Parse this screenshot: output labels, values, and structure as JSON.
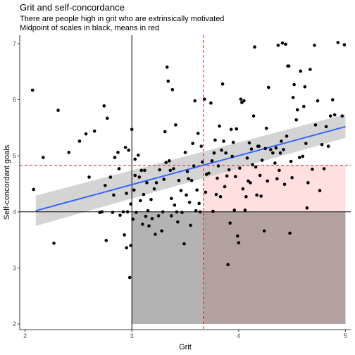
{
  "chart_data": {
    "type": "scatter",
    "title": "Grit and self-concordance",
    "subtitle_lines": [
      "There are people high in grit who are extrinsically motivated",
      "Midpoint of scales in black, means in red"
    ],
    "xlabel": "Grit",
    "ylabel": "Self-concordant goals",
    "xlim": [
      1.95,
      5.05
    ],
    "ylim": [
      1.9,
      7.15
    ],
    "xticks": [
      2,
      3,
      4,
      5
    ],
    "yticks": [
      2,
      3,
      4,
      5,
      6,
      7
    ],
    "grid": false,
    "scale_midpoints": {
      "x": 3,
      "y": 4
    },
    "means": {
      "x": 3.67,
      "y": 4.83
    },
    "regions": [
      {
        "name": "grey",
        "x": [
          3,
          3.67
        ],
        "y": [
          2,
          4
        ],
        "color": "#b3b3b3"
      },
      {
        "name": "brown",
        "x": [
          3.67,
          5
        ],
        "y": [
          2,
          4
        ],
        "color": "#b3a1a1"
      },
      {
        "name": "pink",
        "x": [
          3.67,
          5
        ],
        "y": [
          4,
          4.83
        ],
        "color": "#ffdfe0"
      }
    ],
    "regression": {
      "x": [
        2.1,
        5.0
      ],
      "y": [
        4.02,
        5.52
      ],
      "ci_lower": [
        3.75,
        5.32
      ],
      "ci_upper": [
        4.29,
        5.74
      ],
      "color": "#3366ff",
      "ribbon_color": "#cccccc"
    },
    "midpoint_color": "#000000",
    "mean_color": "#e41a1c",
    "points": [
      [
        2.07,
        6.17
      ],
      [
        2.08,
        4.4
      ],
      [
        2.17,
        4.97
      ],
      [
        2.27,
        3.44
      ],
      [
        2.31,
        5.81
      ],
      [
        2.41,
        5.06
      ],
      [
        2.51,
        5.26
      ],
      [
        2.57,
        5.39
      ],
      [
        2.6,
        4.62
      ],
      [
        2.65,
        5.44
      ],
      [
        2.7,
        3.99
      ],
      [
        2.72,
        4.0
      ],
      [
        2.74,
        5.89
      ],
      [
        2.75,
        4.47
      ],
      [
        2.76,
        3.49
      ],
      [
        2.77,
        5.67
      ],
      [
        2.8,
        4.62
      ],
      [
        2.82,
        3.99
      ],
      [
        2.83,
        4.3
      ],
      [
        2.84,
        4.97
      ],
      [
        2.87,
        5.06
      ],
      [
        2.88,
        4.77
      ],
      [
        2.89,
        3.94
      ],
      [
        2.92,
        4.0
      ],
      [
        2.93,
        3.59
      ],
      [
        2.94,
        5.15
      ],
      [
        2.95,
        4.33
      ],
      [
        2.95,
        3.36
      ],
      [
        2.96,
        4.0
      ],
      [
        2.97,
        5.1
      ],
      [
        2.98,
        2.83
      ],
      [
        2.99,
        3.4
      ],
      [
        2.99,
        4.14
      ],
      [
        3.0,
        5.47
      ],
      [
        3.01,
        3.87
      ],
      [
        3.02,
        4.39
      ],
      [
        3.03,
        4.65
      ],
      [
        3.03,
        4.94
      ],
      [
        3.04,
        3.99
      ],
      [
        3.06,
        5.01
      ],
      [
        3.07,
        4.62
      ],
      [
        3.08,
        4.2
      ],
      [
        3.09,
        4.74
      ],
      [
        3.1,
        3.78
      ],
      [
        3.11,
        4.31
      ],
      [
        3.12,
        4.74
      ],
      [
        3.13,
        3.92
      ],
      [
        3.14,
        4.52
      ],
      [
        3.15,
        4.02
      ],
      [
        3.16,
        3.75
      ],
      [
        3.18,
        4.22
      ],
      [
        3.19,
        3.88
      ],
      [
        3.21,
        4.41
      ],
      [
        3.22,
        3.6
      ],
      [
        3.23,
        4.52
      ],
      [
        3.25,
        3.93
      ],
      [
        3.26,
        4.75
      ],
      [
        3.28,
        3.66
      ],
      [
        3.29,
        4.0
      ],
      [
        3.3,
        4.58
      ],
      [
        3.31,
        5.43
      ],
      [
        3.32,
        4.88
      ],
      [
        3.33,
        6.58
      ],
      [
        3.34,
        6.33
      ],
      [
        3.35,
        4.91
      ],
      [
        3.36,
        4.74
      ],
      [
        3.37,
        4.24
      ],
      [
        3.37,
        3.93
      ],
      [
        3.38,
        6.18
      ],
      [
        3.39,
        4.77
      ],
      [
        3.4,
        4.12
      ],
      [
        3.41,
        5.55
      ],
      [
        3.42,
        4.0
      ],
      [
        3.43,
        3.82
      ],
      [
        3.44,
        4.56
      ],
      [
        3.46,
        4.38
      ],
      [
        3.47,
        3.99
      ],
      [
        3.49,
        3.43
      ],
      [
        3.5,
        5.06
      ],
      [
        3.51,
        4.3
      ],
      [
        3.52,
        4.72
      ],
      [
        3.53,
        4.59
      ],
      [
        3.54,
        4.17
      ],
      [
        3.55,
        3.76
      ],
      [
        3.56,
        4.56
      ],
      [
        3.57,
        5.22
      ],
      [
        3.58,
        4.82
      ],
      [
        3.59,
        5.98
      ],
      [
        3.6,
        4.02
      ],
      [
        3.61,
        4.39
      ],
      [
        3.62,
        5.4
      ],
      [
        3.63,
        4.15
      ],
      [
        3.64,
        4.0
      ],
      [
        3.65,
        5.17
      ],
      [
        3.66,
        4.89
      ],
      [
        3.68,
        6.01
      ],
      [
        3.69,
        4.35
      ],
      [
        3.7,
        4.67
      ],
      [
        3.72,
        4.69
      ],
      [
        3.74,
        5.94
      ],
      [
        3.75,
        4.91
      ],
      [
        3.76,
        4.01
      ],
      [
        3.77,
        5.05
      ],
      [
        3.78,
        5.28
      ],
      [
        3.79,
        4.31
      ],
      [
        3.8,
        4.6
      ],
      [
        3.81,
        4.82
      ],
      [
        3.82,
        5.53
      ],
      [
        3.83,
        4.27
      ],
      [
        3.84,
        5.1
      ],
      [
        3.85,
        6.28
      ],
      [
        3.86,
        5.26
      ],
      [
        3.87,
        4.45
      ],
      [
        3.88,
        5.05
      ],
      [
        3.89,
        4.64
      ],
      [
        3.9,
        3.06
      ],
      [
        3.91,
        4.75
      ],
      [
        3.92,
        3.8
      ],
      [
        3.93,
        5.47
      ],
      [
        3.94,
        4.99
      ],
      [
        3.95,
        5.24
      ],
      [
        3.96,
        4.03
      ],
      [
        3.97,
        4.63
      ],
      [
        3.98,
        5.48
      ],
      [
        3.99,
        3.57
      ],
      [
        4.0,
        3.45
      ],
      [
        4.01,
        4.78
      ],
      [
        4.02,
        6.01
      ],
      [
        4.03,
        5.95
      ],
      [
        4.04,
        4.41
      ],
      [
        4.05,
        5.98
      ],
      [
        4.06,
        4.03
      ],
      [
        4.07,
        4.27
      ],
      [
        4.08,
        4.96
      ],
      [
        4.09,
        4.55
      ],
      [
        4.1,
        5.23
      ],
      [
        4.11,
        4.52
      ],
      [
        4.12,
        5.12
      ],
      [
        4.13,
        4.84
      ],
      [
        4.14,
        5.71
      ],
      [
        4.15,
        6.94
      ],
      [
        4.16,
        4.8
      ],
      [
        4.17,
        4.3
      ],
      [
        4.18,
        5.17
      ],
      [
        4.19,
        5.17
      ],
      [
        4.2,
        4.65
      ],
      [
        4.21,
        4.28
      ],
      [
        4.22,
        4.92
      ],
      [
        4.24,
        3.66
      ],
      [
        4.25,
        5.13
      ],
      [
        4.26,
        5.49
      ],
      [
        4.27,
        4.55
      ],
      [
        4.28,
        6.22
      ],
      [
        4.3,
        5.11
      ],
      [
        4.32,
        5.05
      ],
      [
        4.34,
        4.87
      ],
      [
        4.35,
        5.14
      ],
      [
        4.36,
        4.59
      ],
      [
        4.37,
        6.97
      ],
      [
        4.38,
        4.74
      ],
      [
        4.39,
        5.05
      ],
      [
        4.4,
        5.26
      ],
      [
        4.41,
        7.01
      ],
      [
        4.42,
        5.11
      ],
      [
        4.43,
        4.49
      ],
      [
        4.44,
        6.99
      ],
      [
        4.45,
        5.35
      ],
      [
        4.46,
        6.6
      ],
      [
        4.47,
        6.6
      ],
      [
        4.48,
        3.62
      ],
      [
        4.49,
        4.9
      ],
      [
        4.5,
        4.61
      ],
      [
        4.51,
        6.04
      ],
      [
        4.52,
        6.27
      ],
      [
        4.54,
        5.64
      ],
      [
        4.55,
        5.82
      ],
      [
        4.57,
        4.97
      ],
      [
        4.58,
        6.51
      ],
      [
        4.6,
        4.99
      ],
      [
        4.61,
        5.88
      ],
      [
        4.62,
        6.23
      ],
      [
        4.63,
        5.22
      ],
      [
        4.64,
        4.07
      ],
      [
        4.65,
        4.52
      ],
      [
        4.67,
        6.54
      ],
      [
        4.69,
        4.76
      ],
      [
        4.71,
        6.97
      ],
      [
        4.72,
        5.55
      ],
      [
        4.74,
        5.98
      ],
      [
        4.76,
        4.38
      ],
      [
        4.78,
        5.2
      ],
      [
        4.8,
        4.77
      ],
      [
        4.82,
        5.52
      ],
      [
        4.84,
        5.17
      ],
      [
        4.86,
        5.71
      ],
      [
        4.88,
        6.0
      ],
      [
        4.9,
        5.73
      ],
      [
        4.93,
        7.02
      ],
      [
        4.97,
        5.71
      ],
      [
        4.99,
        6.98
      ]
    ]
  }
}
